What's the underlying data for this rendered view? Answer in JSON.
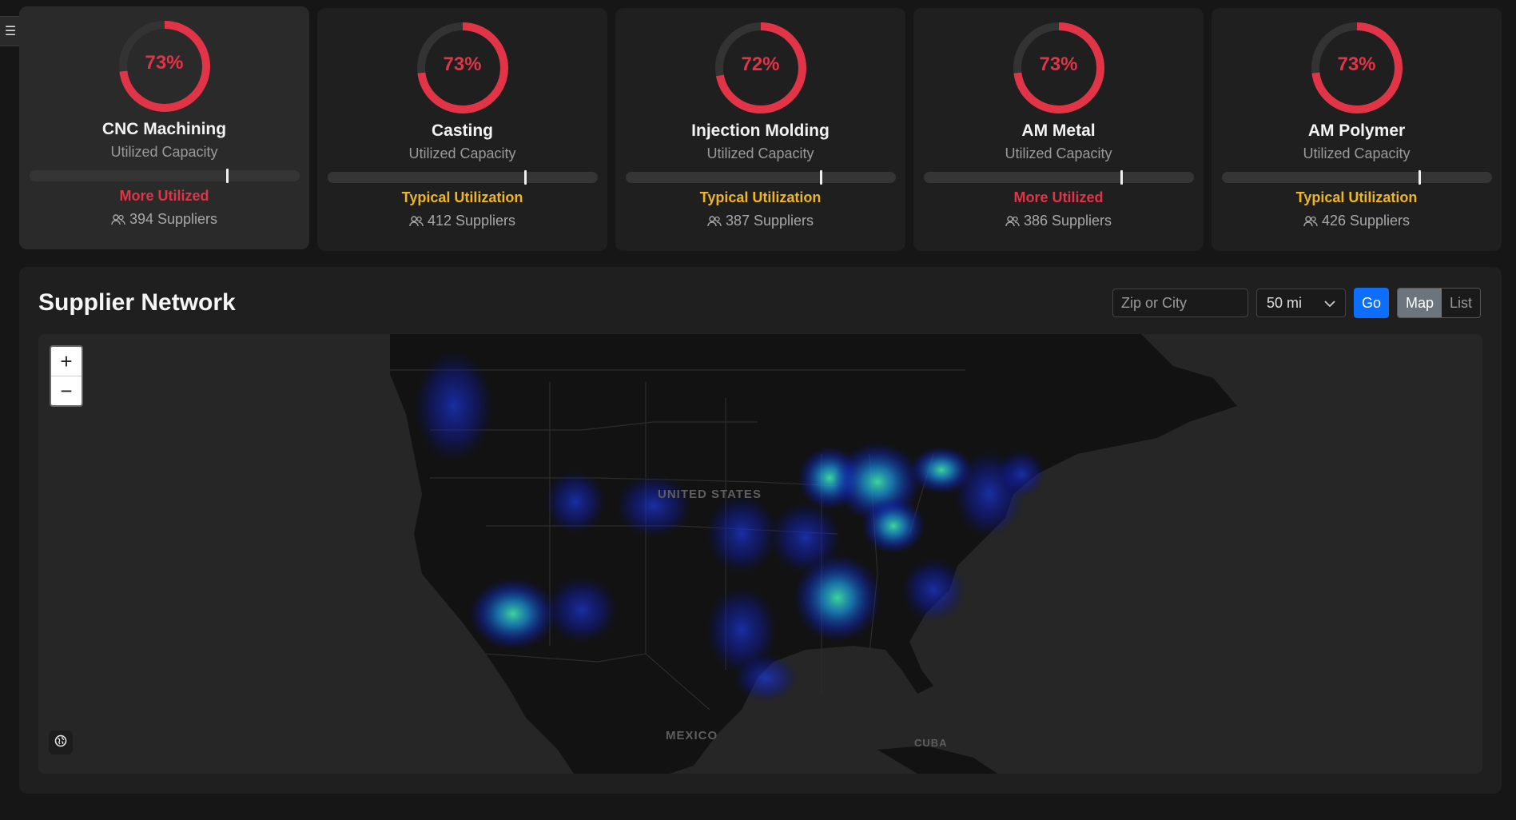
{
  "menu": {
    "icon": "hamburger-icon",
    "glyph": "☰"
  },
  "cards": [
    {
      "name": "CNC Machining",
      "subtitle": "Utilized Capacity",
      "percent_label": "73%",
      "percent": 73,
      "marker": 0.73,
      "status": "More Utilized",
      "status_color": "#e13447",
      "suppliers": "394 Suppliers"
    },
    {
      "name": "Casting",
      "subtitle": "Utilized Capacity",
      "percent_label": "73%",
      "percent": 73,
      "marker": 0.73,
      "status": "Typical Utilization",
      "status_color": "#f0b61f",
      "suppliers": "412 Suppliers"
    },
    {
      "name": "Injection Molding",
      "subtitle": "Utilized Capacity",
      "percent_label": "72%",
      "percent": 72,
      "marker": 0.72,
      "status": "Typical Utilization",
      "status_color": "#f0b61f",
      "suppliers": "387 Suppliers"
    },
    {
      "name": "AM Metal",
      "subtitle": "Utilized Capacity",
      "percent_label": "73%",
      "percent": 73,
      "marker": 0.73,
      "status": "More Utilized",
      "status_color": "#e13447",
      "suppliers": "386 Suppliers"
    },
    {
      "name": "AM Polymer",
      "subtitle": "Utilized Capacity",
      "percent_label": "73%",
      "percent": 73,
      "marker": 0.73,
      "status": "Typical Utilization",
      "status_color": "#f0b61f",
      "suppliers": "426 Suppliers"
    }
  ],
  "network": {
    "title": "Supplier Network",
    "search_placeholder": "Zip or City",
    "radius_value": "50 mi",
    "go_label": "Go",
    "view_map": "Map",
    "view_list": "List",
    "zoom_in": "+",
    "zoom_out": "−",
    "map_labels": {
      "usa": "UNITED STATES",
      "mexico": "MEXICO",
      "cuba": "CUBA"
    }
  },
  "colors": {
    "accent_red": "#e13447",
    "accent_yellow": "#f0b61f",
    "primary_blue": "#0d6efd"
  }
}
